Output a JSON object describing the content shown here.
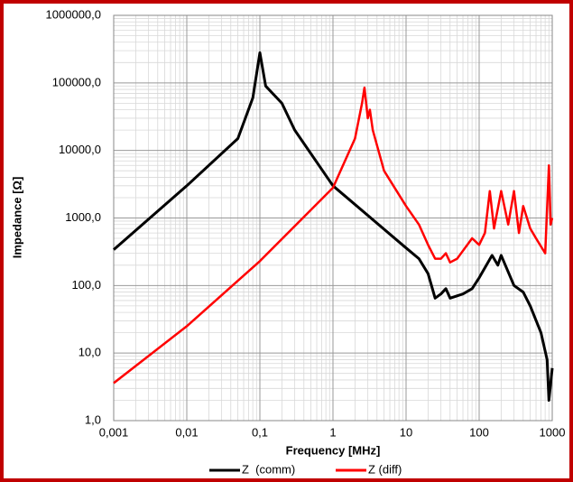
{
  "chart_data": {
    "type": "line",
    "x_label": "Frequency  [MHz]",
    "y_label": "Impedance [Ω]",
    "xlog": true,
    "ylog": true,
    "grid": true,
    "legend": "bottom",
    "xlim": [
      0.001,
      1000
    ],
    "xticks": [
      {
        "value": 0.001,
        "label": "0,001"
      },
      {
        "value": 0.01,
        "label": "0,01"
      },
      {
        "value": 0.1,
        "label": "0,1"
      },
      1,
      10,
      100,
      1000
    ],
    "ylim": [
      1,
      1000000
    ],
    "yticks": [
      {
        "value": 1,
        "label": "1,0"
      },
      {
        "value": 10,
        "label": "10,0"
      },
      {
        "value": 100,
        "label": "100,0"
      },
      {
        "value": 1000,
        "label": "1000,0"
      },
      {
        "value": 10000,
        "label": "10000,0"
      },
      {
        "value": 100000,
        "label": "100000,0"
      },
      {
        "value": 1000000,
        "label": "1000000,0"
      }
    ],
    "series": [
      {
        "name": "Z  (comm)",
        "color": "#000000",
        "x": [
          0.001,
          0.01,
          0.05,
          0.08,
          0.1,
          0.12,
          0.2,
          0.3,
          1,
          10,
          15,
          20,
          25,
          30,
          35,
          40,
          60,
          80,
          100,
          150,
          180,
          200,
          300,
          400,
          500,
          700,
          850,
          900,
          1000
        ],
        "values": [
          340,
          3000,
          15000,
          60000,
          280000,
          90000,
          50000,
          20000,
          3000,
          360,
          250,
          150,
          65,
          75,
          90,
          65,
          75,
          90,
          130,
          280,
          200,
          280,
          100,
          80,
          50,
          20,
          8,
          2,
          6
        ]
      },
      {
        "name": "Z (diff)",
        "color": "#ff0000",
        "x": [
          0.001,
          0.01,
          0.1,
          1,
          2,
          2.5,
          2.7,
          3,
          3.2,
          3.5,
          5,
          10,
          15,
          20,
          25,
          30,
          35,
          40,
          50,
          80,
          100,
          120,
          140,
          160,
          200,
          250,
          300,
          350,
          400,
          500,
          600,
          800,
          900,
          950,
          1000
        ],
        "values": [
          3.6,
          25,
          230,
          2800,
          15000,
          50000,
          85000,
          30000,
          40000,
          20000,
          5000,
          1500,
          800,
          400,
          250,
          250,
          300,
          220,
          250,
          500,
          400,
          600,
          2500,
          700,
          2500,
          800,
          2500,
          600,
          1500,
          700,
          500,
          300,
          6000,
          800,
          1000
        ]
      }
    ]
  }
}
